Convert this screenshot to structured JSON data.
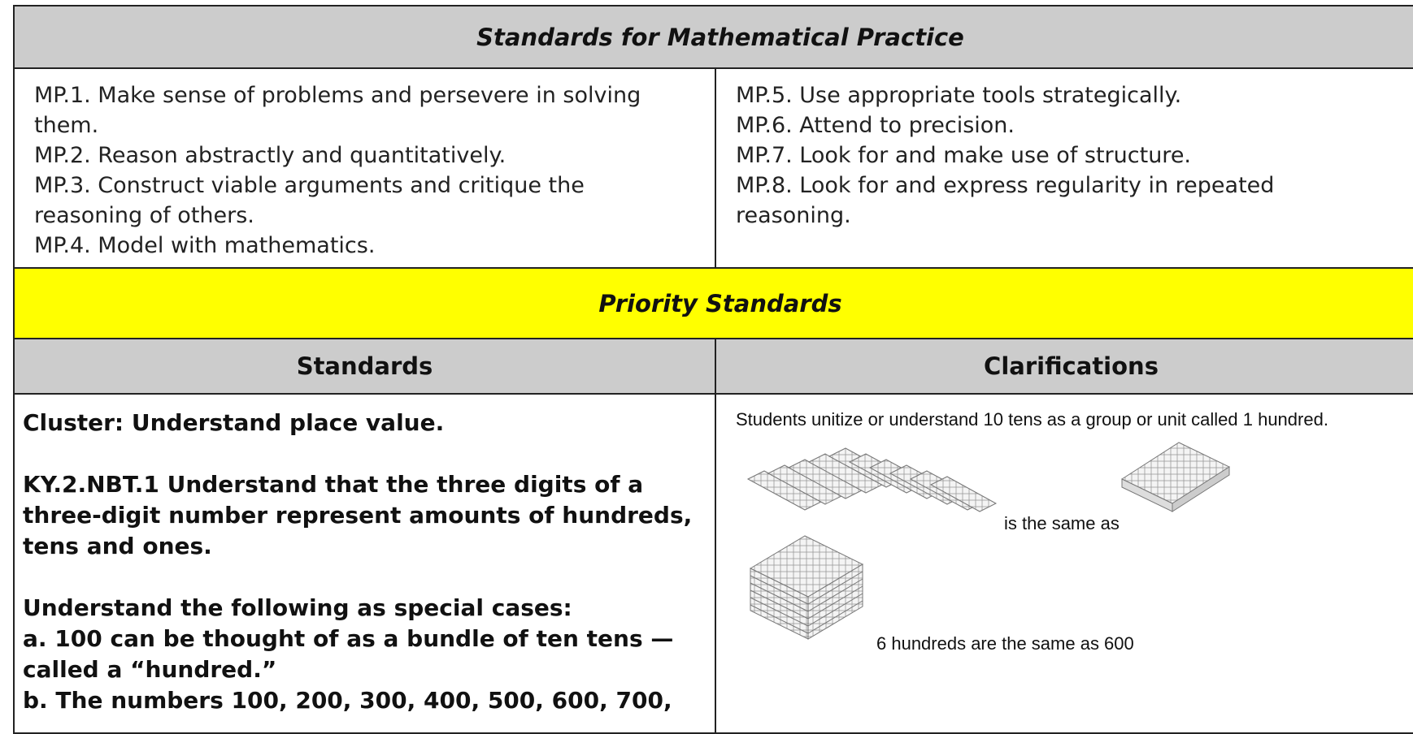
{
  "header": {
    "title": "Standards for Mathematical Practice"
  },
  "practices": {
    "left": [
      "MP.1. Make sense of problems and persevere in solving them.",
      "MP.2. Reason abstractly and quantitatively.",
      "MP.3. Construct viable arguments and critique the reasoning of others.",
      "MP.4. Model with mathematics."
    ],
    "right": [
      "MP.5. Use appropriate tools strategically.",
      "MP.6. Attend to precision.",
      "MP.7. Look for and make use of structure.",
      "MP.8. Look for and express regularity in repeated reasoning."
    ]
  },
  "priority": {
    "title": "Priority Standards"
  },
  "table": {
    "headers": [
      "Standards",
      "Clarifications"
    ],
    "standards": [
      "Cluster: Understand place value.",
      "KY.2.NBT.1 Understand that the three digits of a three-digit number represent amounts of hundreds, tens and ones.",
      "Understand the following as special cases:",
      "a. 100 can be thought of as a bundle of ten tens — called a “hundred.”",
      "b. The numbers 100, 200, 300, 400, 500, 600, 700,"
    ],
    "clarifications": {
      "caption": "Students unitize or understand 10 tens as a group or unit called 1 hundred.",
      "same_as": "is the same as",
      "hundreds": "6 hundreds are the same as 600"
    }
  }
}
